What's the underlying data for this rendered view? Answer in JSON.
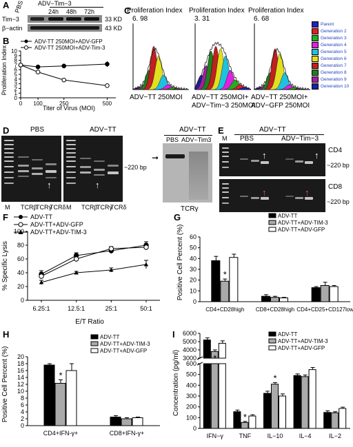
{
  "panels": {
    "A": {
      "label": "A",
      "top_labels": [
        "PBS",
        "24h",
        "48h",
        "72h"
      ],
      "group_label": "ADV−Tim−3",
      "rows": [
        {
          "name": "Tim−3",
          "size": "33 KD"
        },
        {
          "name": "β−actin",
          "size": "43 KD"
        }
      ]
    },
    "B": {
      "label": "B",
      "legend": [
        "ADV-TT 250MOI+ADV-GFP",
        "ADV-TT 250MOI+ADV-Tim-3"
      ],
      "ylabel": "Proliferation Index",
      "xlabel": "Titer of Virus (MOI)"
    },
    "C": {
      "label": "C",
      "histograms": [
        {
          "title": "Proliferation Index",
          "value": "6. 98",
          "caption": [
            "ADV−TT  250MOI"
          ]
        },
        {
          "title": "Proliferation Index",
          "value": "3. 31",
          "caption": [
            "ADV−TT 250MOI+",
            "ADV−Tim−3 250MOI"
          ]
        },
        {
          "title": "Proliferation Index",
          "value": "6. 68",
          "caption": [
            "ADV−TT 250MOI+",
            "ADV−GFP 250MOI"
          ]
        }
      ],
      "legend": [
        {
          "name": "Parent",
          "color": "#2020c0"
        },
        {
          "name": "Generation 2",
          "color": "#e02020"
        },
        {
          "name": "Generation 3",
          "color": "#20b020"
        },
        {
          "name": "Generation 4",
          "color": "#e020e0"
        },
        {
          "name": "Generation 5",
          "color": "#20c0e0"
        },
        {
          "name": "Generation 6",
          "color": "#e0e020"
        },
        {
          "name": "Generation 7",
          "color": "#c02020"
        },
        {
          "name": "Generation 8",
          "color": "#208020"
        },
        {
          "name": "Generation 9",
          "color": "#a020a0"
        },
        {
          "name": "Generation 10",
          "color": "#2020a0"
        }
      ]
    },
    "D": {
      "label": "D",
      "gel_titles": [
        "PBS",
        "ADV−TT"
      ],
      "marker": "M",
      "lanes": [
        "TCRβ",
        "TCRγ",
        "TCRδ"
      ],
      "size_label": "~220 bp",
      "blot_title": "ADV−TT",
      "blot_lanes": [
        "PBS",
        "ADV−Tim3"
      ],
      "blot_caption": "TCRγ"
    },
    "E": {
      "label": "E",
      "title": "ADV−TT",
      "marker": "M",
      "groups": [
        "PBS",
        "ADV−Tim−3"
      ],
      "rows": [
        {
          "name": "CD4",
          "size": "~220 bp"
        },
        {
          "name": "CD8",
          "size": "~220 bp"
        }
      ]
    },
    "F": {
      "label": "F",
      "legend": [
        "ADV-TT",
        "ADV-TT+ADV-GFP",
        "ADV-TT+ADV-TIM-3"
      ],
      "ylabel": "% Specific Lysis",
      "xlabel": "E/T Ratio"
    },
    "G": {
      "label": "G",
      "legend": [
        "ADV-TT",
        "ADV-TT+ADV-TIM-3",
        "ADV-TT+ADV-GFP"
      ],
      "ylabel": "Positive Cell Percent (%)"
    },
    "H": {
      "label": "H",
      "legend": [
        "ADV-TT",
        "ADV-TT+ADV-TIM-3",
        "ADV-TT+ADV-GFP"
      ],
      "ylabel": "Positive Cell Percent (%)"
    },
    "I": {
      "label": "I",
      "legend": [
        "ADV-TT",
        "ADV-TT+ADV-TIM-3",
        "ADV-TT+ADV-GFP"
      ],
      "ylabel": "Concentration (pg/ml)"
    }
  },
  "chart_data": [
    {
      "id": "B",
      "type": "line",
      "x": [
        0,
        100,
        250,
        500
      ],
      "xticks": [
        "0",
        "100",
        "250",
        "500"
      ],
      "xlim": [
        0,
        550
      ],
      "ylim": [
        0,
        10
      ],
      "yticks": [
        "0",
        "1",
        "2",
        "3",
        "4",
        "5",
        "6",
        "7",
        "8",
        "9",
        "10"
      ],
      "series": [
        {
          "name": "ADV-TT 250MOI+ADV-GFP",
          "values": [
            7.0,
            6.6,
            6.8,
            7.2
          ],
          "err": [
            0.4,
            0.5,
            0.5,
            0.6
          ],
          "marker": "filled-circle"
        },
        {
          "name": "ADV-TT 250MOI+ADV-Tim-3",
          "values": [
            7.0,
            5.5,
            3.8,
            2.6
          ],
          "err": [
            0.4,
            0.5,
            0.4,
            0.3
          ],
          "marker": "open-circle"
        }
      ]
    },
    {
      "id": "F",
      "type": "line",
      "categories": [
        "6.25:1",
        "12.5:1",
        "25:1",
        "50:1"
      ],
      "ylim": [
        0,
        100
      ],
      "yticks": [
        "0",
        "20",
        "40",
        "60",
        "80",
        "100"
      ],
      "series": [
        {
          "name": "ADV-TT",
          "values": [
            38,
            65,
            72,
            80
          ],
          "err": [
            5,
            4,
            4,
            5
          ],
          "marker": "filled-circle"
        },
        {
          "name": "ADV-TT+ADV-GFP",
          "values": [
            35,
            60,
            75,
            77
          ],
          "err": [
            4,
            4,
            3,
            4
          ],
          "marker": "open-circle"
        },
        {
          "name": "ADV-TT+ADV-TIM-3",
          "values": [
            26,
            40,
            44,
            52
          ],
          "err": [
            3,
            2,
            3,
            6
          ],
          "marker": "filled-triangle"
        }
      ]
    },
    {
      "id": "G",
      "type": "bar",
      "categories": [
        "CD4+CD28high",
        "CD8+CD28high",
        "CD4+CD25+CD127low"
      ],
      "ylim": [
        0,
        60
      ],
      "yticks": [
        "0",
        "10",
        "20",
        "30",
        "40",
        "50",
        "60"
      ],
      "series": [
        {
          "name": "ADV-TT",
          "values": [
            38,
            5,
            13
          ],
          "err": [
            4,
            1.5,
            1
          ],
          "color": "#000000"
        },
        {
          "name": "ADV-TT+ADV-TIM-3",
          "values": [
            19,
            4,
            15
          ],
          "err": [
            2,
            1,
            3
          ],
          "color": "#aaaaaa"
        },
        {
          "name": "ADV-TT+ADV-GFP",
          "values": [
            41,
            3.5,
            14
          ],
          "err": [
            3,
            0.5,
            1
          ],
          "color": "#ffffff"
        }
      ],
      "annotations": [
        {
          "category": "CD4+CD28high",
          "series": "ADV-TT+ADV-TIM-3",
          "text": "*"
        }
      ]
    },
    {
      "id": "H",
      "type": "bar",
      "categories": [
        "CD4+IFN-γ+",
        "CD8+IFN-γ+"
      ],
      "ylim": [
        0,
        20
      ],
      "yticks": [
        "0",
        "2",
        "4",
        "6",
        "8",
        "10",
        "12",
        "14",
        "16",
        "18",
        "20"
      ],
      "series": [
        {
          "name": "ADV-TT",
          "values": [
            17.6,
            2.5
          ],
          "err": [
            0.4,
            0.4
          ],
          "color": "#000000"
        },
        {
          "name": "ADV-TT+ADV-TIM-3",
          "values": [
            12.3,
            2.0
          ],
          "err": [
            1.0,
            0.3
          ],
          "color": "#aaaaaa"
        },
        {
          "name": "ADV-TT+ADV-GFP",
          "values": [
            16.0,
            2.3
          ],
          "err": [
            2.0,
            0.2
          ],
          "color": "#ffffff"
        }
      ],
      "annotations": [
        {
          "category": "CD4+IFN-γ+",
          "series": "ADV-TT+ADV-TIM-3",
          "text": "*"
        }
      ]
    },
    {
      "id": "I",
      "type": "bar",
      "categories": [
        "IFN−γ",
        "TNF",
        "IL−10",
        "IL−4",
        "IL−2"
      ],
      "axis_break": true,
      "ylim_upper": [
        3000,
        6000
      ],
      "yticks_upper": [
        "3000",
        "4000",
        "5000",
        "6000"
      ],
      "ylim_lower": [
        0,
        600
      ],
      "yticks_lower": [
        "0",
        "100",
        "200",
        "300",
        "400",
        "500",
        "600"
      ],
      "series": [
        {
          "name": "ADV-TT",
          "values": [
            5200,
            155,
            325,
            490,
            148
          ],
          "err": [
            250,
            15,
            20,
            15,
            15
          ],
          "color": "#000000"
        },
        {
          "name": "ADV-TT+ADV-TIM-3",
          "values": [
            3800,
            55,
            410,
            480,
            145
          ],
          "err": [
            200,
            10,
            15,
            15,
            10
          ],
          "color": "#aaaaaa"
        },
        {
          "name": "ADV-TT+ADV-GFP",
          "values": [
            4800,
            115,
            300,
            545,
            185
          ],
          "err": [
            300,
            12,
            20,
            20,
            12
          ],
          "color": "#ffffff"
        }
      ],
      "annotations": [
        {
          "category": "IFN−γ",
          "series": "ADV-TT+ADV-TIM-3",
          "text": "*"
        },
        {
          "category": "TNF",
          "series": "ADV-TT+ADV-TIM-3",
          "text": "*"
        },
        {
          "category": "IL−10",
          "series": "ADV-TT+ADV-TIM-3",
          "text": "*"
        }
      ]
    }
  ]
}
